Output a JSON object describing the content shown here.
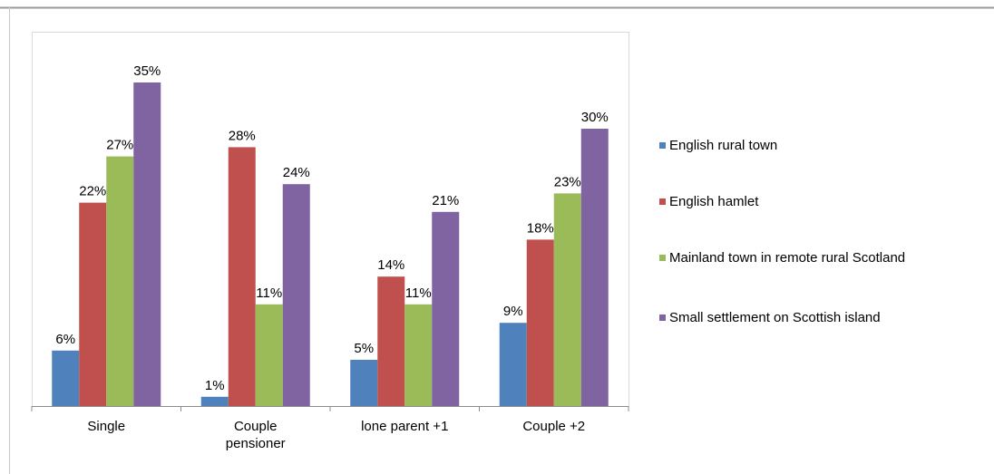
{
  "chart_data": {
    "type": "bar",
    "categories": [
      "Single",
      "Couple pensioner",
      "lone parent +1",
      "Couple +2"
    ],
    "ylim": [
      0,
      40
    ],
    "series": [
      {
        "name": "English rural town",
        "color": "#4f81bd",
        "values": [
          6,
          1,
          5,
          9
        ],
        "value_labels": [
          "6%",
          "1%",
          "5%",
          "9%"
        ]
      },
      {
        "name": "English hamlet",
        "color": "#c0504d",
        "values": [
          22,
          28,
          14,
          18
        ],
        "value_labels": [
          "22%",
          "28%",
          "14%",
          "18%"
        ]
      },
      {
        "name": "Mainland town in remote rural Scotland",
        "color": "#9bbb59",
        "values": [
          27,
          11,
          11,
          23
        ],
        "value_labels": [
          "27%",
          "11%",
          "11%",
          "23%"
        ]
      },
      {
        "name": "Small settlement on Scottish island",
        "color": "#8064a2",
        "values": [
          35,
          24,
          21,
          30
        ],
        "value_labels": [
          "35%",
          "24%",
          "21%",
          "30%"
        ]
      }
    ]
  }
}
